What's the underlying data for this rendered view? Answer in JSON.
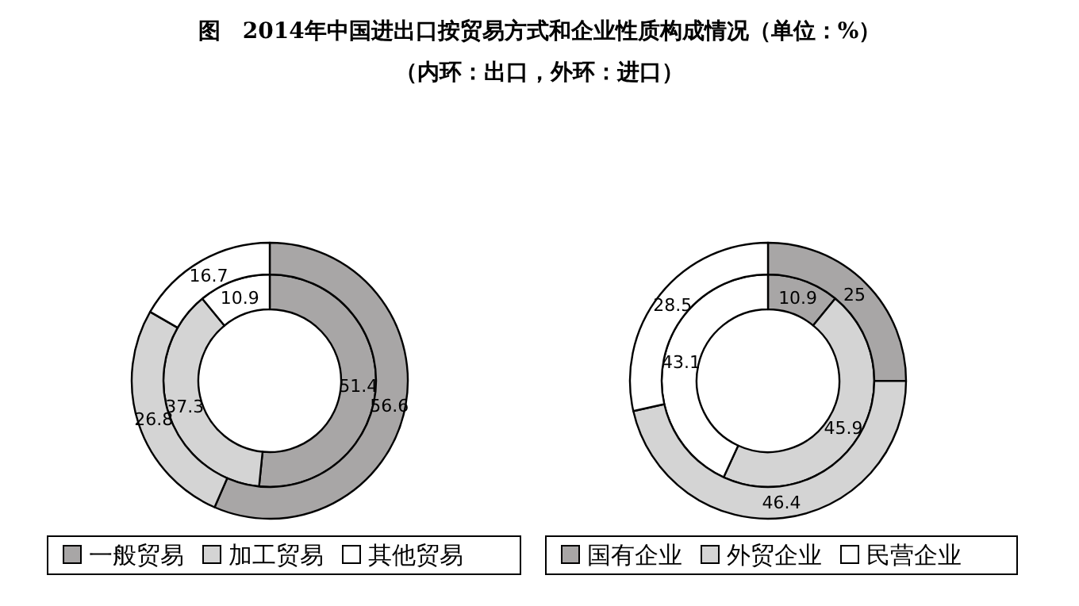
{
  "chart_data": [
    {
      "type": "donut",
      "title": "图　2014年中国进出口按贸易方式和企业性质构成情况（单位：%）",
      "subtitle": "（内环：出口，外环：进口）",
      "categories": [
        "一般贸易",
        "加工贸易",
        "其他贸易"
      ],
      "colors": [
        "#a8a6a6",
        "#d4d4d4",
        "#ffffff"
      ],
      "series": [
        {
          "values": [
            51.4,
            37.3,
            10.9
          ]
        },
        {
          "values": [
            56.6,
            26.8,
            16.7
          ]
        }
      ],
      "data_labels": true,
      "legend": "bottom"
    },
    {
      "type": "donut",
      "categories": [
        "国有企业",
        "外贸企业",
        "民营企业"
      ],
      "colors": [
        "#a8a6a6",
        "#d4d4d4",
        "#ffffff"
      ],
      "series": [
        {
          "values": [
            10.9,
            45.9,
            43.1
          ]
        },
        {
          "values": [
            25,
            46.4,
            28.5
          ]
        }
      ],
      "data_labels": true,
      "legend": "bottom"
    }
  ]
}
